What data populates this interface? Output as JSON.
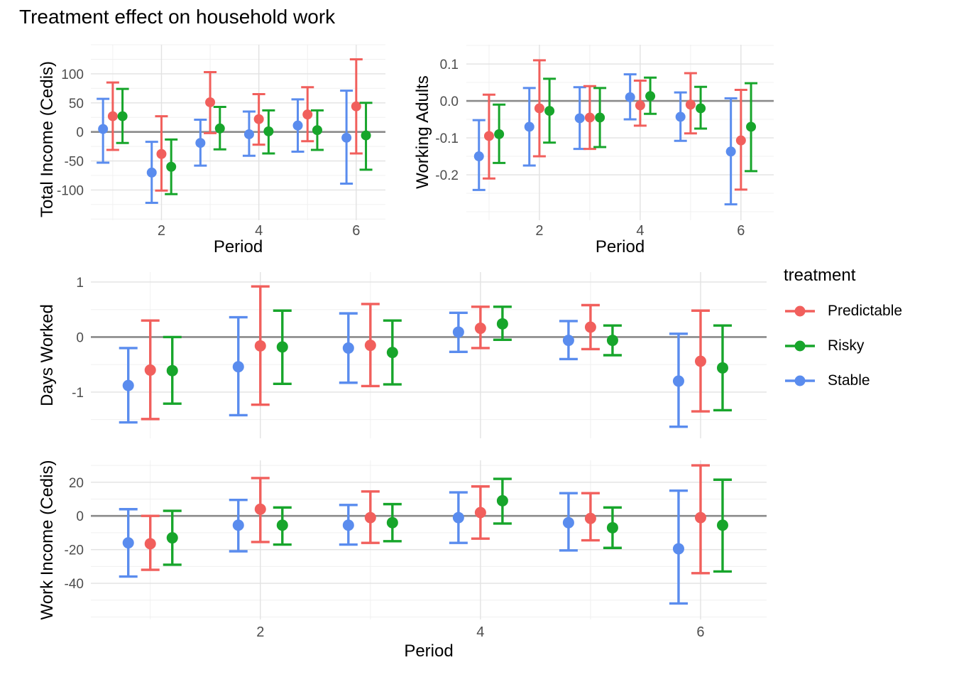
{
  "title": "Treatment effect on household work",
  "legend": {
    "title": "treatment",
    "entries": [
      {
        "label": "Predictable",
        "color": "#F15F5C"
      },
      {
        "label": "Risky",
        "color": "#17A52B"
      },
      {
        "label": "Stable",
        "color": "#5A8CEE"
      }
    ]
  },
  "chart_data": [
    {
      "id": "total_income",
      "type": "scatter",
      "subtype": "pointrange-errorbar",
      "title": "",
      "xlabel": "Period",
      "ylabel": "Total Income (Cedis)",
      "x": [
        1,
        2,
        3,
        4,
        5,
        6
      ],
      "xticks": [
        2,
        4,
        6
      ],
      "xtick_labels": [
        "2",
        "4",
        "6"
      ],
      "xminor": [
        1,
        3,
        5
      ],
      "xlim": [
        0.55,
        6.6
      ],
      "ylim": [
        -152,
        150
      ],
      "yticks": [
        100,
        50,
        0,
        -50,
        -100
      ],
      "ytick_labels": [
        "100",
        "50",
        "0",
        "-50",
        "-100"
      ],
      "yminor_step": 25,
      "zero_line": 0,
      "grid": true,
      "show_x_axis": true,
      "series": [
        {
          "name": "Stable",
          "offset": -0.2,
          "est": [
            5,
            -70,
            -19,
            -4,
            11,
            -10
          ],
          "lo": [
            -53,
            -122,
            -58,
            -41,
            -34,
            -89
          ],
          "hi": [
            57,
            -17,
            21,
            35,
            56,
            71
          ]
        },
        {
          "name": "Predictable",
          "offset": 0,
          "est": [
            27,
            -38,
            51,
            22,
            30,
            44
          ],
          "lo": [
            -31,
            -101,
            -2,
            -22,
            -16,
            -37
          ],
          "hi": [
            85,
            27,
            103,
            65,
            77,
            125
          ]
        },
        {
          "name": "Risky",
          "offset": 0.2,
          "est": [
            27,
            -60,
            6,
            1,
            3,
            -6
          ],
          "lo": [
            -19,
            -107,
            -30,
            -37,
            -31,
            -65
          ],
          "hi": [
            74,
            -13,
            43,
            37,
            37,
            50
          ]
        }
      ]
    },
    {
      "id": "working_adults",
      "type": "scatter",
      "subtype": "pointrange-errorbar",
      "title": "",
      "xlabel": "Period",
      "ylabel": "Working Adults",
      "x": [
        1,
        2,
        3,
        4,
        5,
        6
      ],
      "xticks": [
        2,
        4,
        6
      ],
      "xtick_labels": [
        "2",
        "4",
        "6"
      ],
      "xminor": [
        1,
        3,
        5
      ],
      "xlim": [
        0.55,
        6.65
      ],
      "ylim": [
        -0.323,
        0.152
      ],
      "yticks": [
        0.1,
        0.0,
        -0.1,
        -0.2
      ],
      "ytick_labels": [
        "0.1",
        "0.0",
        "-0.1",
        "-0.2"
      ],
      "yminor_step": 0.05,
      "zero_line": 0,
      "grid": true,
      "show_x_axis": true,
      "series": [
        {
          "name": "Stable",
          "offset": -0.2,
          "est": [
            -0.15,
            -0.07,
            -0.047,
            0.01,
            -0.043,
            -0.137
          ],
          "lo": [
            -0.241,
            -0.175,
            -0.13,
            -0.05,
            -0.108,
            -0.28
          ],
          "hi": [
            -0.052,
            0.035,
            0.037,
            0.072,
            0.023,
            0.007
          ]
        },
        {
          "name": "Predictable",
          "offset": 0,
          "est": [
            -0.095,
            -0.02,
            -0.045,
            -0.012,
            -0.01,
            -0.107
          ],
          "lo": [
            -0.21,
            -0.15,
            -0.13,
            -0.067,
            -0.088,
            -0.24
          ],
          "hi": [
            0.017,
            0.11,
            0.04,
            0.055,
            0.075,
            0.03
          ]
        },
        {
          "name": "Risky",
          "offset": 0.2,
          "est": [
            -0.09,
            -0.027,
            -0.045,
            0.013,
            -0.02,
            -0.07
          ],
          "lo": [
            -0.168,
            -0.113,
            -0.125,
            -0.035,
            -0.075,
            -0.19
          ],
          "hi": [
            -0.01,
            0.06,
            0.035,
            0.063,
            0.038,
            0.048
          ]
        }
      ]
    },
    {
      "id": "days_worked",
      "type": "scatter",
      "subtype": "pointrange-errorbar",
      "title": "",
      "xlabel": "",
      "ylabel": "Days Worked",
      "x": [
        1,
        2,
        3,
        4,
        5,
        6
      ],
      "xticks": [
        2,
        4,
        6
      ],
      "xtick_labels": [],
      "xminor": [
        1,
        3,
        5
      ],
      "xlim": [
        0.46,
        6.6
      ],
      "ylim": [
        -1.84,
        1.18
      ],
      "yticks": [
        1,
        0,
        -1
      ],
      "ytick_labels": [
        "1",
        "0",
        "-1"
      ],
      "yminor_step": 0.5,
      "zero_line": 0,
      "grid": true,
      "show_x_axis": false,
      "series": [
        {
          "name": "Stable",
          "offset": -0.2,
          "est": [
            -0.88,
            -0.54,
            -0.2,
            0.09,
            -0.06,
            -0.8
          ],
          "lo": [
            -1.55,
            -1.42,
            -0.83,
            -0.27,
            -0.4,
            -1.63
          ],
          "hi": [
            -0.2,
            0.36,
            0.43,
            0.44,
            0.29,
            0.06
          ]
        },
        {
          "name": "Predictable",
          "offset": 0,
          "est": [
            -0.6,
            -0.16,
            -0.15,
            0.16,
            0.18,
            -0.44
          ],
          "lo": [
            -1.49,
            -1.23,
            -0.89,
            -0.2,
            -0.22,
            -1.35
          ],
          "hi": [
            0.3,
            0.92,
            0.6,
            0.55,
            0.58,
            0.48
          ]
        },
        {
          "name": "Risky",
          "offset": 0.2,
          "est": [
            -0.61,
            -0.18,
            -0.28,
            0.24,
            -0.06,
            -0.56
          ],
          "lo": [
            -1.21,
            -0.85,
            -0.86,
            -0.05,
            -0.33,
            -1.33
          ],
          "hi": [
            0.0,
            0.48,
            0.3,
            0.55,
            0.21,
            0.21
          ]
        }
      ]
    },
    {
      "id": "work_income",
      "type": "scatter",
      "subtype": "pointrange-errorbar",
      "title": "",
      "xlabel": "Period",
      "ylabel": "Work Income (Cedis)",
      "x": [
        1,
        2,
        3,
        4,
        5,
        6
      ],
      "xticks": [
        2,
        4,
        6
      ],
      "xtick_labels": [
        "2",
        "4",
        "6"
      ],
      "xminor": [
        1,
        3,
        5
      ],
      "xlim": [
        0.46,
        6.6
      ],
      "ylim": [
        -61.5,
        33
      ],
      "yticks": [
        20,
        0,
        -20,
        -40
      ],
      "ytick_labels": [
        "20",
        "0",
        "-20",
        "-40"
      ],
      "yminor_step": 10,
      "zero_line": 0,
      "grid": true,
      "show_x_axis": true,
      "series": [
        {
          "name": "Stable",
          "offset": -0.2,
          "est": [
            -16,
            -5.5,
            -5.5,
            -1,
            -4,
            -19.5
          ],
          "lo": [
            -36,
            -21,
            -17,
            -16,
            -20.5,
            -52
          ],
          "hi": [
            4,
            9.5,
            6.5,
            14,
            13.5,
            15
          ]
        },
        {
          "name": "Predictable",
          "offset": 0,
          "est": [
            -16.5,
            4,
            -1,
            2,
            -1.5,
            -1
          ],
          "lo": [
            -32,
            -15.5,
            -16,
            -13.5,
            -14.5,
            -34
          ],
          "hi": [
            0,
            22.5,
            14.5,
            17.5,
            13.5,
            30
          ]
        },
        {
          "name": "Risky",
          "offset": 0.2,
          "est": [
            -13,
            -5.5,
            -4,
            9,
            -7,
            -5.5
          ],
          "lo": [
            -29,
            -17,
            -15,
            -4.5,
            -19,
            -33
          ],
          "hi": [
            3,
            5,
            7,
            22,
            5,
            21.5
          ]
        }
      ]
    }
  ]
}
